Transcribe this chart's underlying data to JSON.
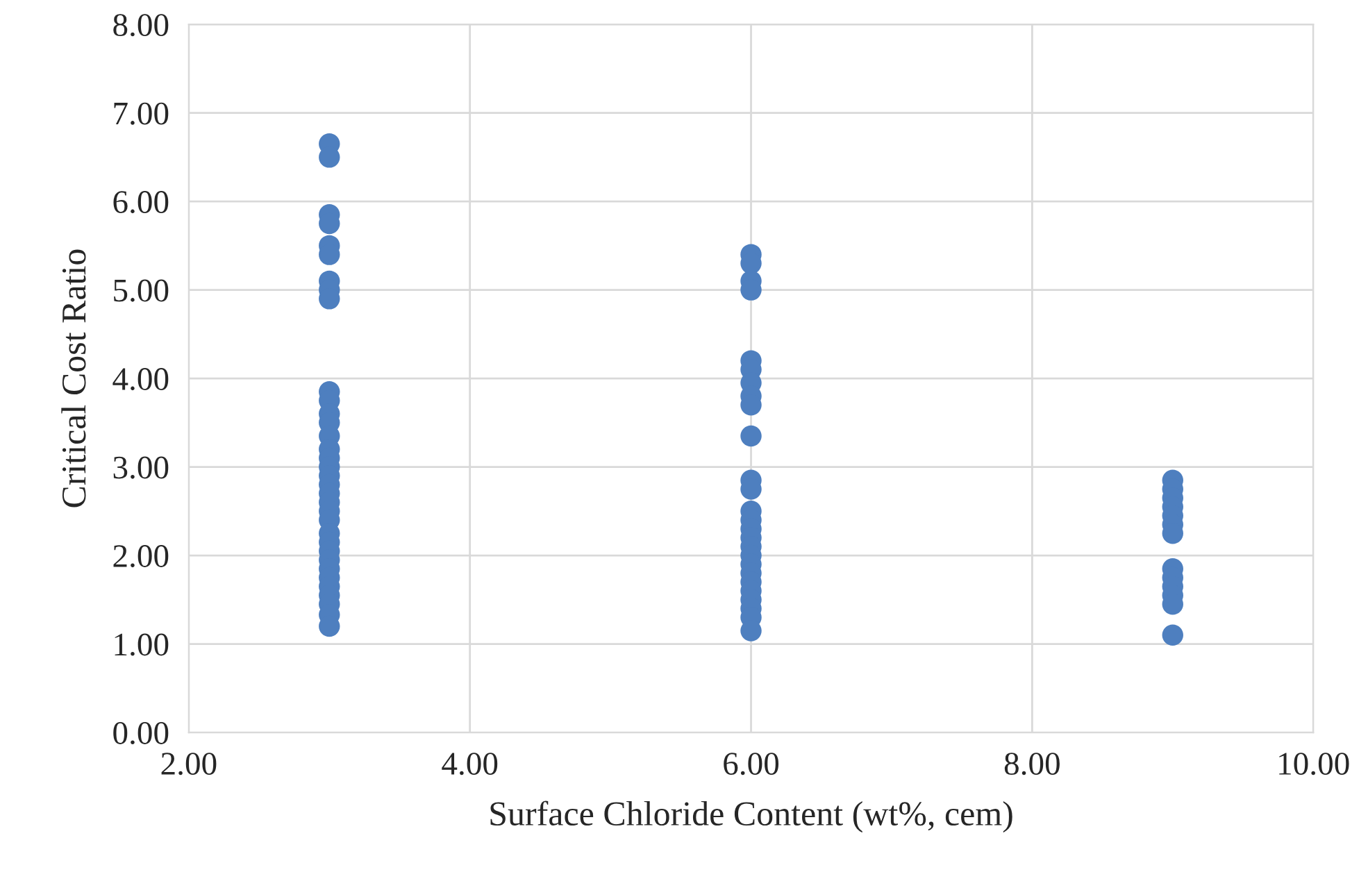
{
  "chart_data": {
    "type": "scatter",
    "xlabel": "Surface Chloride Content (wt%, cem)",
    "ylabel": "Critical Cost Ratio",
    "x": [
      3,
      3,
      3,
      3,
      3,
      3,
      3,
      3,
      3,
      3,
      3,
      3,
      3,
      3,
      3,
      3,
      3,
      3,
      3,
      3,
      3,
      3,
      3,
      3,
      3,
      3,
      3,
      3,
      3,
      3,
      3,
      3,
      3,
      3,
      6,
      6,
      6,
      6,
      6,
      6,
      6,
      6,
      6,
      6,
      6,
      6,
      6,
      6,
      6,
      6,
      6,
      6,
      6,
      6,
      6,
      6,
      6,
      6,
      6,
      6,
      9,
      9,
      9,
      9,
      9,
      9,
      9,
      9,
      9,
      9,
      9,
      9,
      9
    ],
    "values": [
      6.65,
      6.5,
      5.85,
      5.75,
      5.5,
      5.4,
      5.1,
      5.0,
      4.9,
      3.85,
      3.75,
      3.6,
      3.5,
      3.35,
      3.2,
      3.1,
      3.0,
      2.9,
      2.8,
      2.7,
      2.6,
      2.5,
      2.4,
      2.25,
      2.15,
      2.05,
      1.95,
      1.85,
      1.75,
      1.65,
      1.55,
      1.45,
      1.33,
      1.2,
      5.4,
      5.3,
      5.1,
      5.0,
      4.2,
      4.1,
      3.95,
      3.8,
      3.7,
      3.35,
      2.85,
      2.75,
      2.5,
      2.4,
      2.3,
      2.2,
      2.1,
      2.0,
      1.9,
      1.8,
      1.7,
      1.6,
      1.5,
      1.4,
      1.3,
      1.15,
      2.85,
      2.75,
      2.65,
      2.55,
      2.45,
      2.35,
      2.25,
      1.85,
      1.75,
      1.65,
      1.55,
      1.45,
      1.1
    ],
    "color": "#4e7fbf",
    "marker": "circle",
    "xlim": [
      2,
      10
    ],
    "xticks": [
      {
        "value": 2,
        "label": "2.00"
      },
      {
        "value": 4,
        "label": "4.00"
      },
      {
        "value": 6,
        "label": "6.00"
      },
      {
        "value": 8,
        "label": "8.00"
      },
      {
        "value": 10,
        "label": "10.00"
      }
    ],
    "ylim": [
      0,
      8
    ],
    "yticks": [
      {
        "value": 0,
        "label": "0.00"
      },
      {
        "value": 1,
        "label": "1.00"
      },
      {
        "value": 2,
        "label": "2.00"
      },
      {
        "value": 3,
        "label": "3.00"
      },
      {
        "value": 4,
        "label": "4.00"
      },
      {
        "value": 5,
        "label": "5.00"
      },
      {
        "value": 6,
        "label": "6.00"
      },
      {
        "value": 7,
        "label": "7.00"
      },
      {
        "value": 8,
        "label": "8.00"
      }
    ],
    "grid": true
  }
}
